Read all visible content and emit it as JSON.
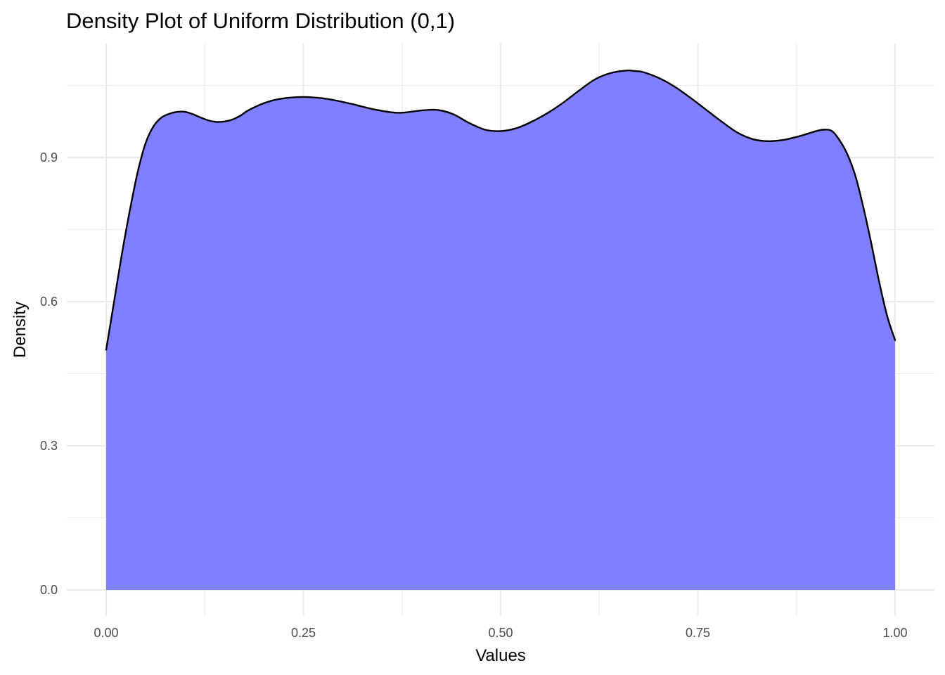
{
  "chart_data": {
    "type": "area",
    "title": "Density Plot of Uniform Distribution (0,1)",
    "xlabel": "Values",
    "ylabel": "Density",
    "xlim": [
      0,
      1
    ],
    "ylim": [
      0,
      1.08
    ],
    "x_ticks": [
      0,
      0.25,
      0.5,
      0.75,
      1
    ],
    "x_tick_labels": [
      "0.00",
      "0.25",
      "0.50",
      "0.75",
      "1.00"
    ],
    "y_ticks": [
      0,
      0.3,
      0.6,
      0.9
    ],
    "y_tick_labels": [
      "0.0",
      "0.3",
      "0.6",
      "0.9"
    ],
    "grid": true,
    "fill_color": "#7f7fff",
    "line_color": "#000000",
    "series": [
      {
        "x": [
          0.0,
          0.01,
          0.02,
          0.03,
          0.04,
          0.05,
          0.06,
          0.07,
          0.08,
          0.09,
          0.1,
          0.11,
          0.12,
          0.13,
          0.14,
          0.15,
          0.16,
          0.17,
          0.18,
          0.2,
          0.22,
          0.25,
          0.28,
          0.31,
          0.34,
          0.37,
          0.4,
          0.42,
          0.44,
          0.46,
          0.48,
          0.5,
          0.52,
          0.54,
          0.56,
          0.58,
          0.6,
          0.62,
          0.64,
          0.66,
          0.67,
          0.68,
          0.7,
          0.72,
          0.74,
          0.76,
          0.78,
          0.8,
          0.82,
          0.84,
          0.86,
          0.88,
          0.9,
          0.91,
          0.92,
          0.93,
          0.94,
          0.95,
          0.96,
          0.97,
          0.98,
          0.99,
          1.0
        ],
        "y": [
          0.5,
          0.6,
          0.7,
          0.79,
          0.87,
          0.93,
          0.965,
          0.983,
          0.991,
          0.995,
          0.995,
          0.99,
          0.983,
          0.977,
          0.974,
          0.975,
          0.979,
          0.987,
          0.998,
          1.013,
          1.022,
          1.026,
          1.022,
          1.012,
          1.0,
          0.993,
          0.998,
          0.999,
          0.99,
          0.972,
          0.958,
          0.955,
          0.961,
          0.975,
          0.993,
          1.015,
          1.04,
          1.063,
          1.076,
          1.081,
          1.08,
          1.078,
          1.066,
          1.048,
          1.025,
          1.0,
          0.975,
          0.952,
          0.938,
          0.934,
          0.937,
          0.945,
          0.955,
          0.958,
          0.955,
          0.935,
          0.905,
          0.86,
          0.795,
          0.72,
          0.64,
          0.57,
          0.52
        ]
      }
    ]
  }
}
